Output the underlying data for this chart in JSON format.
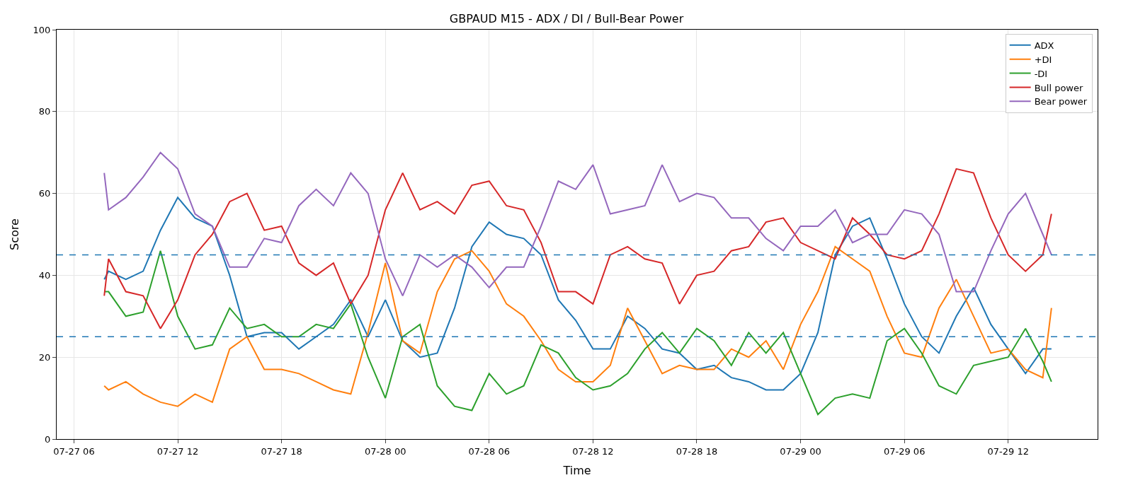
{
  "chart_data": {
    "type": "line",
    "title": "GBPAUD M15 - ADX / DI / Bull-Bear Power",
    "xlabel": "Time",
    "ylabel": "Score",
    "x": [
      "--07-27T07:45",
      "--07-27T08:00",
      "--07-27T09:00",
      "--07-27T10:00",
      "--07-27T11:00",
      "--07-27T12:00",
      "--07-27T13:00",
      "--07-27T14:00",
      "--07-27T15:00",
      "--07-27T16:00",
      "--07-27T17:00",
      "--07-27T18:00",
      "--07-27T19:00",
      "--07-27T20:00",
      "--07-27T21:00",
      "--07-27T22:00",
      "--07-27T23:00",
      "--07-28T00:00",
      "--07-28T01:00",
      "--07-28T02:00",
      "--07-28T03:00",
      "--07-28T04:00",
      "--07-28T05:00",
      "--07-28T06:00",
      "--07-28T07:00",
      "--07-28T08:00",
      "--07-28T09:00",
      "--07-28T10:00",
      "--07-28T11:00",
      "--07-28T12:00",
      "--07-28T13:00",
      "--07-28T14:00",
      "--07-28T15:00",
      "--07-28T16:00",
      "--07-28T17:00",
      "--07-28T18:00",
      "--07-28T19:00",
      "--07-28T20:00",
      "--07-28T21:00",
      "--07-28T22:00",
      "--07-28T23:00",
      "--07-29T00:00",
      "--07-29T01:00",
      "--07-29T02:00",
      "--07-29T03:00",
      "--07-29T04:00",
      "--07-29T05:00",
      "--07-29T06:00",
      "--07-29T07:00",
      "--07-29T08:00",
      "--07-29T09:00",
      "--07-29T10:00",
      "--07-29T11:00",
      "--07-29T12:00",
      "--07-29T13:00",
      "--07-29T14:00",
      "--07-29T14:30"
    ],
    "series": [
      {
        "name": "ADX",
        "color": "#1f77b4",
        "values": [
          39,
          41,
          39,
          41,
          51,
          59,
          54,
          52,
          40,
          25,
          26,
          26,
          22,
          25,
          28,
          34,
          25,
          34,
          24,
          20,
          21,
          32,
          47,
          53,
          50,
          49,
          45,
          34,
          29,
          22,
          22,
          30,
          27,
          22,
          21,
          17,
          18,
          15,
          14,
          12,
          12,
          16,
          26,
          45,
          52,
          54,
          44,
          33,
          25,
          21,
          30,
          37,
          28,
          22,
          16,
          22,
          22
        ]
      },
      {
        "name": "+DI",
        "color": "#ff7f0e",
        "values": [
          13,
          12,
          14,
          11,
          9,
          8,
          11,
          9,
          22,
          25,
          17,
          17,
          16,
          14,
          12,
          11,
          26,
          43,
          24,
          21,
          36,
          44,
          46,
          41,
          33,
          30,
          24,
          17,
          14,
          14,
          18,
          32,
          24,
          16,
          18,
          17,
          17,
          22,
          20,
          24,
          17,
          28,
          36,
          47,
          44,
          41,
          30,
          21,
          20,
          32,
          39,
          30,
          21,
          22,
          17,
          15,
          32
        ]
      },
      {
        "name": "-DI",
        "color": "#2ca02c",
        "values": [
          36,
          36,
          30,
          31,
          46,
          30,
          22,
          23,
          32,
          27,
          28,
          25,
          25,
          28,
          27,
          33,
          20,
          10,
          25,
          28,
          13,
          8,
          7,
          16,
          11,
          13,
          23,
          21,
          15,
          12,
          13,
          16,
          22,
          26,
          21,
          27,
          24,
          18,
          26,
          21,
          26,
          16,
          6,
          10,
          11,
          10,
          24,
          27,
          21,
          13,
          11,
          18,
          19,
          20,
          27,
          19,
          14
        ]
      },
      {
        "name": "Bull power",
        "color": "#d62728",
        "values": [
          35,
          44,
          36,
          35,
          27,
          34,
          45,
          50,
          58,
          60,
          51,
          52,
          43,
          40,
          43,
          33,
          40,
          56,
          65,
          56,
          58,
          55,
          62,
          63,
          57,
          56,
          48,
          36,
          36,
          33,
          45,
          47,
          44,
          43,
          33,
          40,
          41,
          46,
          47,
          53,
          54,
          48,
          46,
          44,
          54,
          50,
          45,
          44,
          46,
          55,
          66,
          65,
          54,
          45,
          41,
          45,
          55
        ]
      },
      {
        "name": "Bear power",
        "color": "#9467bd",
        "values": [
          65,
          56,
          59,
          64,
          70,
          66,
          55,
          52,
          42,
          42,
          49,
          48,
          57,
          61,
          57,
          65,
          60,
          44,
          35,
          45,
          42,
          45,
          42,
          37,
          42,
          42,
          52,
          63,
          61,
          67,
          55,
          56,
          57,
          67,
          58,
          60,
          59,
          54,
          54,
          49,
          46,
          52,
          52,
          56,
          48,
          50,
          50,
          56,
          55,
          50,
          36,
          36,
          46,
          55,
          60,
          50,
          45
        ]
      }
    ],
    "xlim": [
      "--07-27T05:00",
      "--07-29T17:10"
    ],
    "xticks": [
      {
        "value": "--07-27T06:00",
        "label": "07-27 06"
      },
      {
        "value": "--07-27T12:00",
        "label": "07-27 12"
      },
      {
        "value": "--07-27T18:00",
        "label": "07-27 18"
      },
      {
        "value": "--07-28T00:00",
        "label": "07-28 00"
      },
      {
        "value": "--07-28T06:00",
        "label": "07-28 06"
      },
      {
        "value": "--07-28T12:00",
        "label": "07-28 12"
      },
      {
        "value": "--07-28T18:00",
        "label": "07-28 18"
      },
      {
        "value": "--07-29T00:00",
        "label": "07-29 00"
      },
      {
        "value": "--07-29T06:00",
        "label": "07-29 06"
      },
      {
        "value": "--07-29T12:00",
        "label": "07-29 12"
      }
    ],
    "ylim": [
      0,
      100
    ],
    "yticks": [
      0,
      20,
      40,
      60,
      80,
      100
    ],
    "ref_lines": [
      {
        "axis": "y",
        "value": 45,
        "color": "#1f77b4",
        "line_style": "dashed"
      },
      {
        "axis": "y",
        "value": 25,
        "color": "#1f77b4",
        "line_style": "dashed"
      }
    ],
    "grid": true,
    "legend": "top right",
    "line_style": "solid",
    "marker": "none"
  }
}
